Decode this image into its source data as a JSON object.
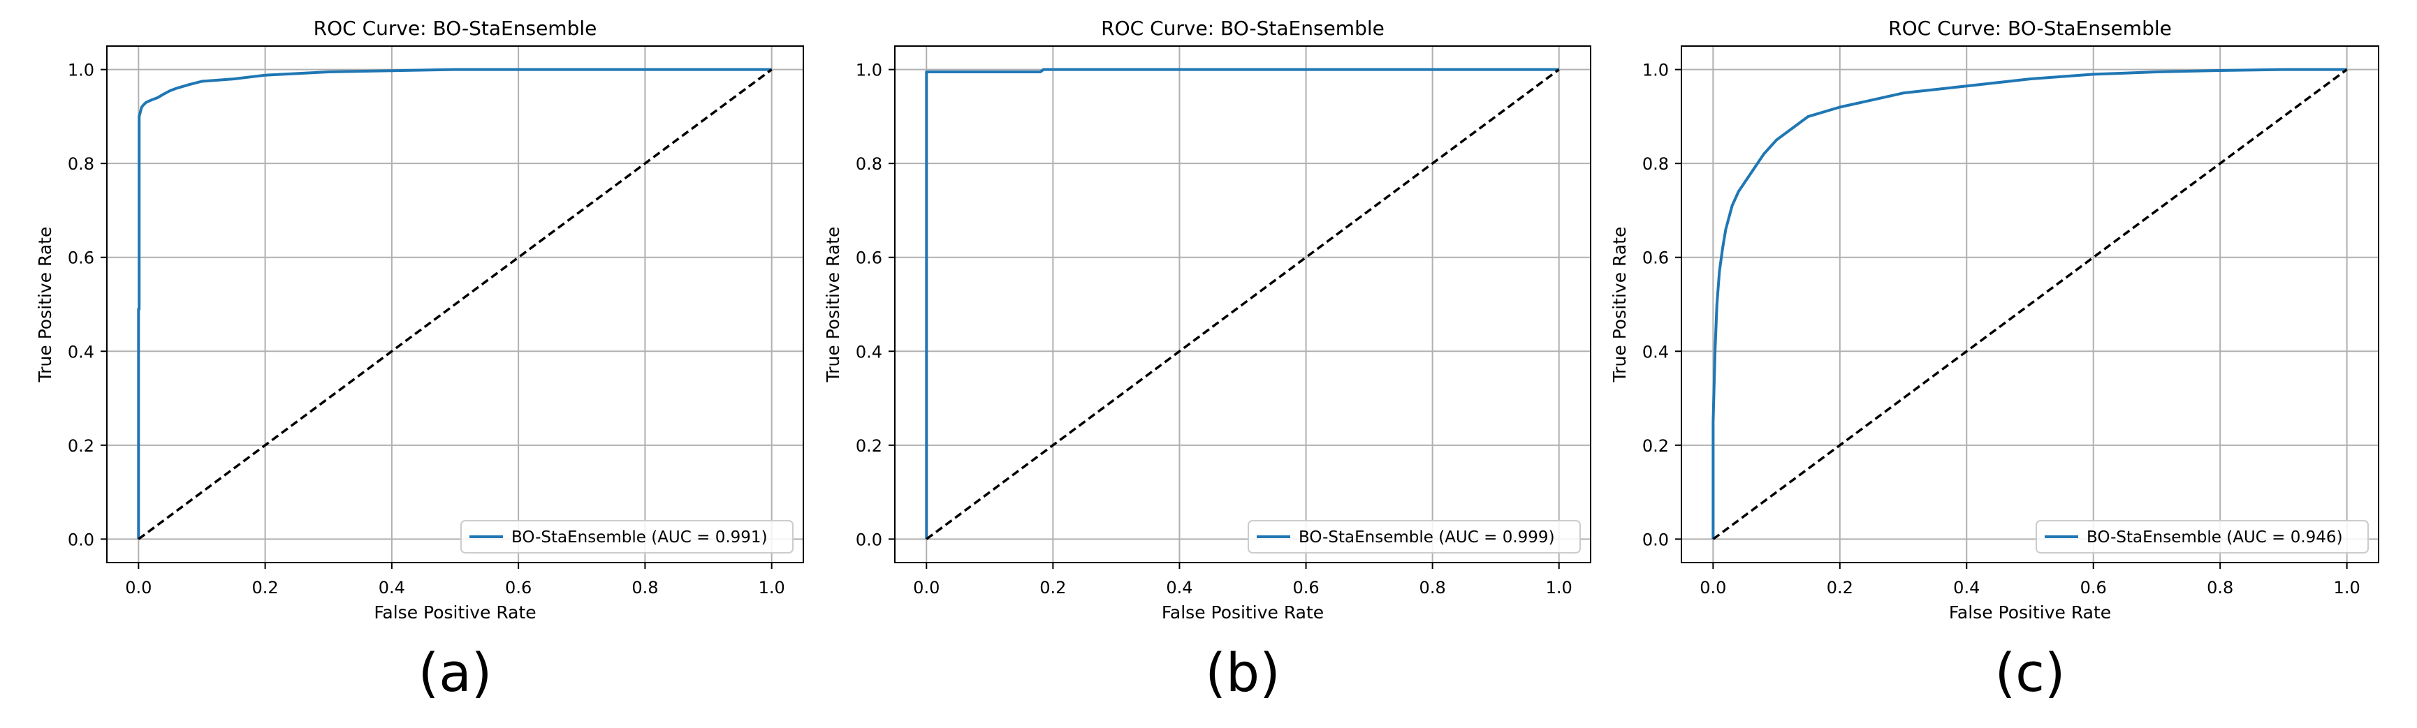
{
  "chart_data": [
    {
      "type": "line",
      "panel_label": "(a)",
      "title": "ROC Curve: BO-StaEnsemble",
      "xlabel": "False Positive Rate",
      "ylabel": "True Positive Rate",
      "xlim": [
        0.0,
        1.0
      ],
      "ylim": [
        0.0,
        1.0
      ],
      "xticks": [
        "0.0",
        "0.2",
        "0.4",
        "0.6",
        "0.8",
        "1.0"
      ],
      "yticks": [
        "0.0",
        "0.2",
        "0.4",
        "0.6",
        "0.8",
        "1.0"
      ],
      "grid": true,
      "legend_position": "lower-right",
      "series": [
        {
          "name": "BO-StaEnsemble (AUC = 0.991)",
          "color": "#1f77b4",
          "style": "solid",
          "x": [
            0.0,
            0.0,
            0.001,
            0.001,
            0.003,
            0.005,
            0.008,
            0.012,
            0.02,
            0.03,
            0.04,
            0.05,
            0.06,
            0.08,
            0.1,
            0.15,
            0.2,
            0.3,
            0.5,
            1.0
          ],
          "y": [
            0.0,
            0.49,
            0.49,
            0.9,
            0.91,
            0.92,
            0.925,
            0.93,
            0.935,
            0.94,
            0.948,
            0.955,
            0.96,
            0.968,
            0.975,
            0.98,
            0.988,
            0.995,
            1.0,
            1.0
          ]
        },
        {
          "name": "",
          "color": "#000000",
          "style": "dashed",
          "x": [
            0.0,
            1.0
          ],
          "y": [
            0.0,
            1.0
          ]
        }
      ]
    },
    {
      "type": "line",
      "panel_label": "(b)",
      "title": "ROC Curve: BO-StaEnsemble",
      "xlabel": "False Positive Rate",
      "ylabel": "True Positive Rate",
      "xlim": [
        0.0,
        1.0
      ],
      "ylim": [
        0.0,
        1.0
      ],
      "xticks": [
        "0.0",
        "0.2",
        "0.4",
        "0.6",
        "0.8",
        "1.0"
      ],
      "yticks": [
        "0.0",
        "0.2",
        "0.4",
        "0.6",
        "0.8",
        "1.0"
      ],
      "grid": true,
      "legend_position": "lower-right",
      "series": [
        {
          "name": "BO-StaEnsemble (AUC = 0.999)",
          "color": "#1f77b4",
          "style": "solid",
          "x": [
            0.0,
            0.0,
            0.18,
            0.185,
            1.0
          ],
          "y": [
            0.0,
            0.995,
            0.995,
            1.0,
            1.0
          ]
        },
        {
          "name": "",
          "color": "#000000",
          "style": "dashed",
          "x": [
            0.0,
            1.0
          ],
          "y": [
            0.0,
            1.0
          ]
        }
      ]
    },
    {
      "type": "line",
      "panel_label": "(c)",
      "title": "ROC Curve: BO-StaEnsemble",
      "xlabel": "False Positive Rate",
      "ylabel": "True Positive Rate",
      "xlim": [
        0.0,
        1.0
      ],
      "ylim": [
        0.0,
        1.0
      ],
      "xticks": [
        "0.0",
        "0.2",
        "0.4",
        "0.6",
        "0.8",
        "1.0"
      ],
      "yticks": [
        "0.0",
        "0.2",
        "0.4",
        "0.6",
        "0.8",
        "1.0"
      ],
      "grid": true,
      "legend_position": "lower-right",
      "series": [
        {
          "name": "BO-StaEnsemble (AUC = 0.946)",
          "color": "#1f77b4",
          "style": "solid",
          "x": [
            0.0,
            0.0,
            0.003,
            0.006,
            0.01,
            0.015,
            0.02,
            0.03,
            0.04,
            0.05,
            0.06,
            0.08,
            0.1,
            0.12,
            0.15,
            0.2,
            0.25,
            0.3,
            0.4,
            0.5,
            0.6,
            0.7,
            0.8,
            0.9,
            1.0
          ],
          "y": [
            0.0,
            0.25,
            0.4,
            0.5,
            0.57,
            0.62,
            0.66,
            0.71,
            0.74,
            0.76,
            0.78,
            0.82,
            0.85,
            0.87,
            0.9,
            0.92,
            0.935,
            0.95,
            0.965,
            0.98,
            0.99,
            0.995,
            0.998,
            1.0,
            1.0
          ]
        },
        {
          "name": "",
          "color": "#000000",
          "style": "dashed",
          "x": [
            0.0,
            1.0
          ],
          "y": [
            0.0,
            1.0
          ]
        }
      ]
    }
  ]
}
